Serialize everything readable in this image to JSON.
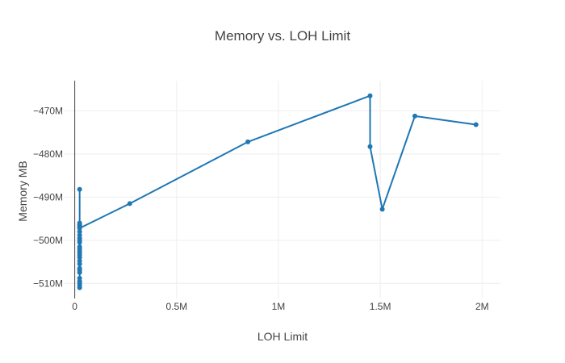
{
  "chart_data": {
    "type": "line",
    "title": "Memory  vs. LOH Limit",
    "xlabel": "LOH Limit",
    "ylabel": "Memory MB",
    "xlim": [
      -50000,
      2090000
    ],
    "ylim": [
      -513500,
      -463000
    ],
    "xticks": [
      {
        "value": 0,
        "label": "0"
      },
      {
        "value": 500000,
        "label": "0.5M"
      },
      {
        "value": 1000000,
        "label": "1M"
      },
      {
        "value": 1500000,
        "label": "1.5M"
      },
      {
        "value": 2000000,
        "label": "2M"
      }
    ],
    "yticks": [
      {
        "value": -470000,
        "label": "−470M"
      },
      {
        "value": -480000,
        "label": "−480M"
      },
      {
        "value": -490000,
        "label": "−490M"
      },
      {
        "value": -500000,
        "label": "−500M"
      },
      {
        "value": -510000,
        "label": "−510M"
      }
    ],
    "grid": true,
    "series": [
      {
        "color": "#1f77b4",
        "x": [
          24000,
          24000,
          24000,
          24000,
          24000,
          24000,
          24000,
          24000,
          24000,
          24000,
          24000,
          24000,
          24000,
          24000,
          24000,
          24000,
          24000,
          24000,
          24000,
          24000,
          24000,
          24000,
          24000,
          24000,
          24000,
          24000,
          24000,
          270000,
          850000,
          1450000,
          1450000,
          1510000,
          1670000,
          1970000
        ],
        "y": [
          -511000,
          -510500,
          -510000,
          -509500,
          -508800,
          -507500,
          -507000,
          -506500,
          -505500,
          -504800,
          -504000,
          -503500,
          -503000,
          -502500,
          -502000,
          -501500,
          -500500,
          -500000,
          -499500,
          -498800,
          -498000,
          -497000,
          -496500,
          -496000,
          -488200,
          -496500,
          -497200,
          -491500,
          -477200,
          -466500,
          -478300,
          -492800,
          -471200,
          -473200
        ]
      }
    ]
  }
}
